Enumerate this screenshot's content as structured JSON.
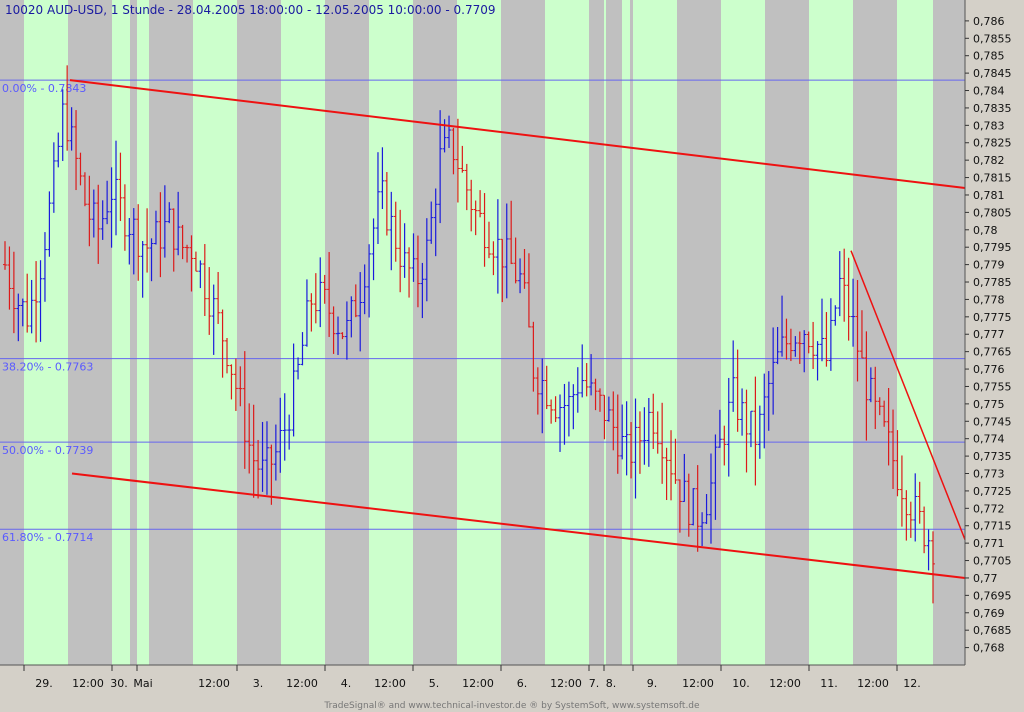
{
  "chart_data": {
    "type": "bar",
    "title": "10020  AUD-USD, 1 Stunde - 28.04.2005 18:00:00 - 12.05.2005 10:00:00 - 0.7709",
    "footer": "TradeSignal® and www.technical-investor.de ® by  SystemSoft, www.systemsoft.de",
    "ylim": [
      0.7675,
      0.7866
    ],
    "y_ticks": [
      0.786,
      0.7855,
      0.785,
      0.7845,
      0.784,
      0.7835,
      0.783,
      0.7825,
      0.782,
      0.7815,
      0.781,
      0.7805,
      0.78,
      0.7795,
      0.779,
      0.7785,
      0.778,
      0.7775,
      0.777,
      0.7765,
      0.776,
      0.7755,
      0.775,
      0.7745,
      0.774,
      0.7735,
      0.773,
      0.7725,
      0.772,
      0.7715,
      0.771,
      0.7705,
      0.77,
      0.7695,
      0.769,
      0.7685,
      0.768
    ],
    "x_labels": [
      "29.",
      "12:00",
      "30.",
      "Mai",
      "12:00",
      "3.",
      "12:00",
      "4.",
      "12:00",
      "5.",
      "12:00",
      "6.",
      "12:00",
      "7.",
      "8.",
      "9.",
      "12:00",
      "10.",
      "12:00",
      "11.",
      "12:00",
      "12."
    ],
    "fib_levels": [
      {
        "label": "0.00% - 0.7843",
        "value": 0.7843
      },
      {
        "label": "38.20% - 0.7763",
        "value": 0.7763
      },
      {
        "label": "50.00% - 0.7739",
        "value": 0.7739
      },
      {
        "label": "61.80% - 0.7714",
        "value": 0.7714
      }
    ],
    "trend_lines": [
      {
        "from": 0.7843,
        "to": 0.7812
      },
      {
        "from": 0.773,
        "to": 0.77
      },
      {
        "from": 0.7794,
        "to": 0.7711
      }
    ],
    "price_path": [
      0.779,
      0.778,
      0.7775,
      0.779,
      0.781,
      0.7835,
      0.782,
      0.7805,
      0.78,
      0.7812,
      0.7805,
      0.78,
      0.7795,
      0.7798,
      0.7802,
      0.7795,
      0.7795,
      0.7785,
      0.7775,
      0.7765,
      0.775,
      0.7735,
      0.773,
      0.7735,
      0.7745,
      0.776,
      0.778,
      0.778,
      0.7775,
      0.777,
      0.778,
      0.7795,
      0.781,
      0.78,
      0.779,
      0.7785,
      0.7795,
      0.782,
      0.7825,
      0.7815,
      0.7805,
      0.78,
      0.7795,
      0.779,
      0.7785,
      0.776,
      0.7755,
      0.775,
      0.775,
      0.7758,
      0.7752,
      0.7748,
      0.7742,
      0.7735,
      0.774,
      0.7748,
      0.774,
      0.773,
      0.7722,
      0.7718,
      0.7725,
      0.774,
      0.7752,
      0.7745,
      0.774,
      0.7755,
      0.7765,
      0.777,
      0.7772,
      0.7768,
      0.7762,
      0.7785,
      0.7775,
      0.776,
      0.7748,
      0.774,
      0.773,
      0.7722,
      0.7715,
      0.771
    ],
    "colors": {
      "up_bar": "#1a1adc",
      "down_bar": "#dc1a1a",
      "trend_line": "#ee1111",
      "fib_line": "#6666ee",
      "band_green": "#ccffcc",
      "band_gray": "#c0c0c0",
      "axis_bg": "#d4d0c8"
    }
  }
}
